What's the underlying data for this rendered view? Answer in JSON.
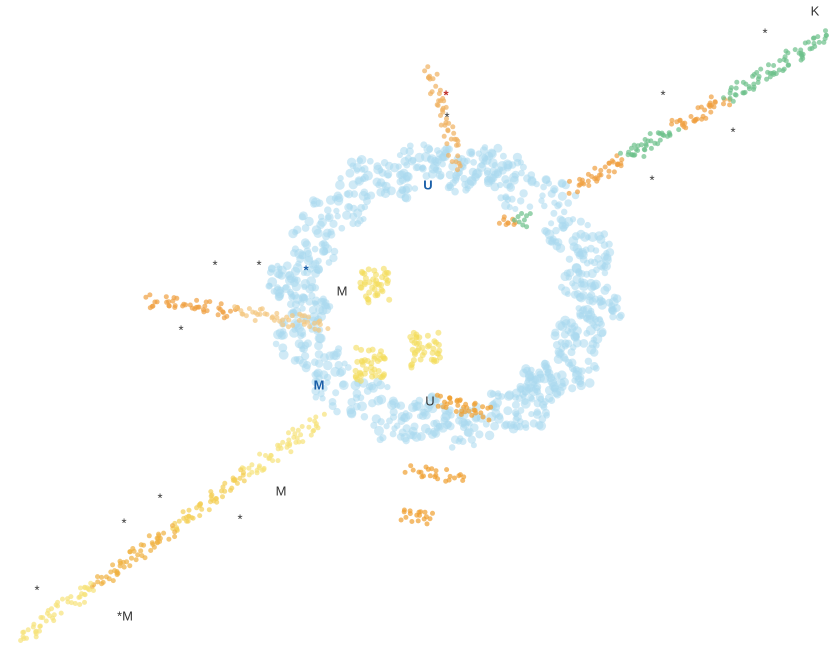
{
  "labels": [
    "U",
    "M",
    "M",
    "U",
    "M",
    "*M",
    "K",
    "*",
    "*",
    "*",
    "*",
    "*",
    "*",
    "*",
    "*",
    "*",
    "*",
    "*",
    "*",
    "*",
    "*"
  ]
}
